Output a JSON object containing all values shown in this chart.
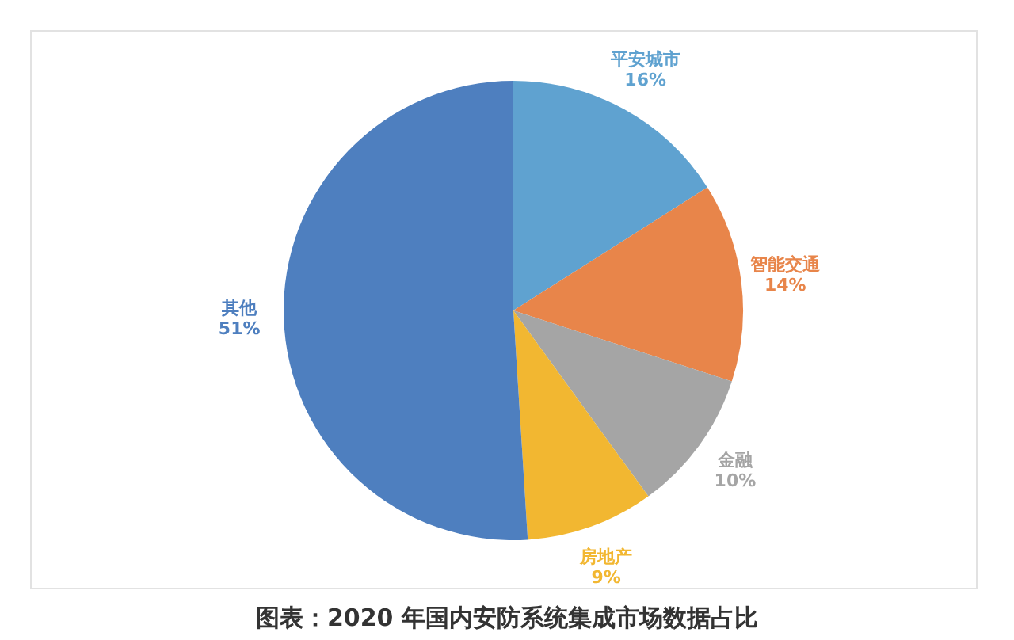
{
  "chart_data": {
    "type": "pie",
    "title": "图表：2020 年国内安防系统集成市场数据占比",
    "categories": [
      "平安城市",
      "智能交通",
      "金融",
      "房地产",
      "其他"
    ],
    "values": [
      16,
      14,
      10,
      9,
      51
    ],
    "value_labels": [
      "16%",
      "14%",
      "10%",
      "9%",
      "51%"
    ],
    "colors": [
      "#5fa2d0",
      "#e8854a",
      "#a5a5a5",
      "#f2b731",
      "#4e7fbf"
    ],
    "legend": false
  }
}
